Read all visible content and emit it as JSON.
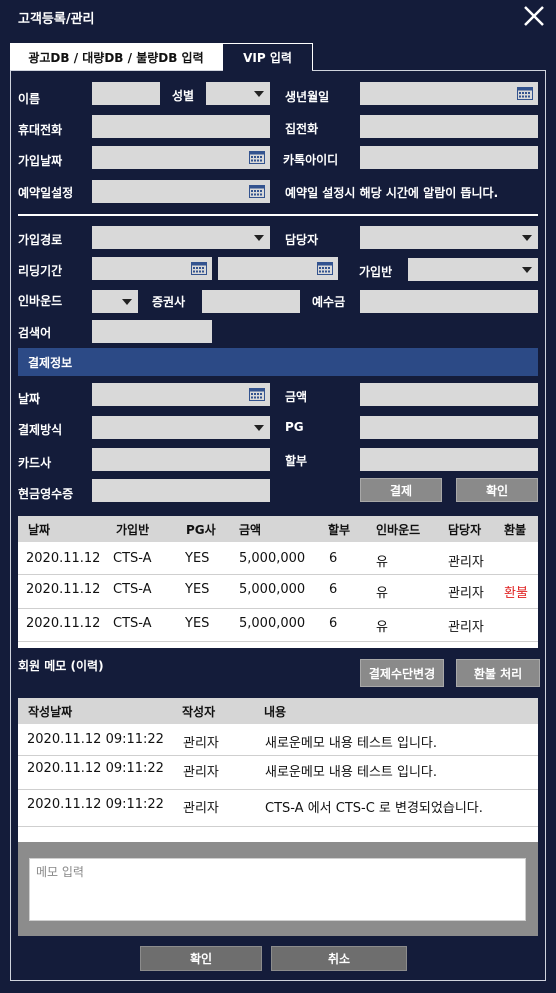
{
  "window": {
    "title": "고객등록/관리"
  },
  "tabs": [
    {
      "label": "광고DB / 대량DB / 불량DB 입력"
    },
    {
      "label": "VIP 입력"
    }
  ],
  "form": {
    "name": "이름",
    "gender": "성별",
    "birthdate": "생년월일",
    "mobile": "휴대전화",
    "home_phone": "집전화",
    "join_date": "가입날짜",
    "kakao_id": "카톡아이디",
    "reservation": "예약일설정",
    "reservation_hint": "예약일 설정시 해당 시간에 알람이 뜹니다.",
    "join_route": "가입경로",
    "manager": "담당자",
    "leading_period": "리딩기간",
    "join_class": "가입반",
    "inbound": "인바운드",
    "brokerage": "증권사",
    "deposit": "예수금",
    "search_word": "검색어"
  },
  "payment": {
    "section_title": "결제정보",
    "date": "날짜",
    "amount": "금액",
    "method": "결제방식",
    "pg": "PG",
    "card": "카드사",
    "installment": "할부",
    "cash_receipt": "현금영수증",
    "pay_button": "결제",
    "confirm_button": "확인"
  },
  "payment_table": {
    "headers": [
      "날짜",
      "가입반",
      "PG사",
      "금액",
      "할부",
      "인바운드",
      "담당자",
      "환불"
    ],
    "rows": [
      [
        "2020.11.12",
        "CTS-A",
        "YES",
        "5,000,000",
        "6",
        "유",
        "관리자",
        ""
      ],
      [
        "2020.11.12",
        "CTS-A",
        "YES",
        "5,000,000",
        "6",
        "유",
        "관리자",
        "환불"
      ],
      [
        "2020.11.12",
        "CTS-A",
        "YES",
        "5,000,000",
        "6",
        "유",
        "관리자",
        ""
      ]
    ],
    "refund_color": "#e02020"
  },
  "memo": {
    "title": "회원 메모 (이력)",
    "change_method_button": "결제수단변경",
    "refund_button": "환불 처리",
    "headers": [
      "작성날짜",
      "작성자",
      "내용"
    ],
    "rows": [
      [
        "2020.11.12 09:11:22",
        "관리자",
        "새로운메모 내용 테스트 입니다."
      ],
      [
        "2020.11.12 09:11:22",
        "관리자",
        "새로운메모 내용 테스트 입니다."
      ],
      [
        "2020.11.12 09:11:22",
        "관리자",
        "CTS-A 에서 CTS-C 로 변경되었습니다."
      ]
    ],
    "input_placeholder": "메모 입력"
  },
  "footer": {
    "confirm": "확인",
    "cancel": "취소"
  },
  "colors": {
    "background": "#141c3a",
    "section_bar": "#2c4a86",
    "field": "#d9d9d9",
    "button": "#8a8a8a"
  }
}
